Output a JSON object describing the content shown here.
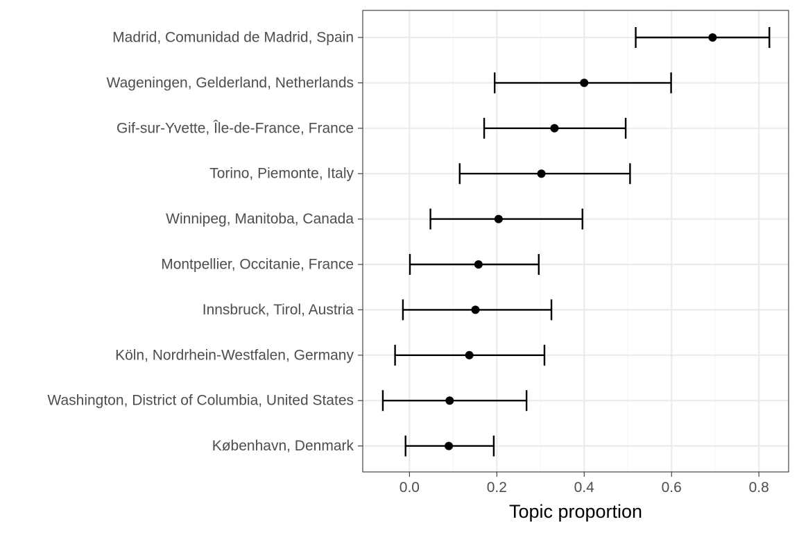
{
  "chart_data": {
    "type": "scatter",
    "subtype": "point-range",
    "title": "",
    "xlabel": "Topic proportion",
    "ylabel": "",
    "xlim": [
      -0.107,
      0.868
    ],
    "xticks": [
      0.0,
      0.2,
      0.4,
      0.6,
      0.8
    ],
    "xtick_labels": [
      "0.0",
      "0.2",
      "0.4",
      "0.6",
      "0.8"
    ],
    "grid": true,
    "theme": "bw",
    "categories": [
      "Madrid, Comunidad de Madrid, Spain",
      "Wageningen, Gelderland, Netherlands",
      "Gif-sur-Yvette, Île-de-France, France",
      "Torino, Piemonte, Italy",
      "Winnipeg, Manitoba, Canada",
      "Montpellier, Occitanie, France",
      "Innsbruck, Tirol, Austria",
      "Köln, Nordrhein-Westfalen, Germany",
      "Washington, District of Columbia, United States",
      "København, Denmark"
    ],
    "estimates": [
      0.694,
      0.4,
      0.332,
      0.302,
      0.204,
      0.158,
      0.151,
      0.137,
      0.092,
      0.09
    ],
    "lower": [
      0.518,
      0.195,
      0.171,
      0.115,
      0.048,
      0.001,
      -0.015,
      -0.033,
      -0.061,
      -0.009
    ],
    "upper": [
      0.824,
      0.599,
      0.495,
      0.505,
      0.396,
      0.296,
      0.325,
      0.309,
      0.268,
      0.193
    ],
    "colors": {
      "point": "#000000",
      "errorbar": "#000000",
      "grid_major": "#ebebeb",
      "grid_minor": "#f5f5f5",
      "panel_border": "#333333",
      "tick_text": "#4d4d4d"
    }
  }
}
